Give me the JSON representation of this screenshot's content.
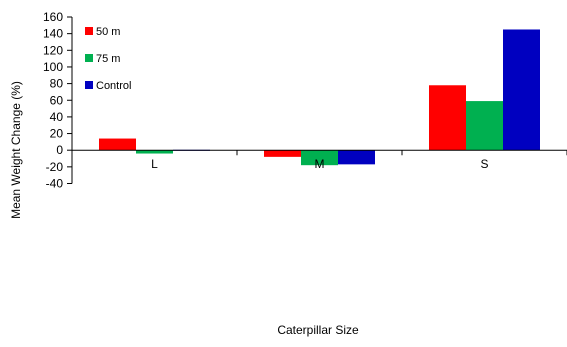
{
  "chart_data": {
    "type": "bar",
    "title": "",
    "xlabel": "Caterpillar Size",
    "ylabel": "Mean Weight Change (%)",
    "categories": [
      "L",
      "M",
      "S"
    ],
    "ylim": [
      -40,
      160
    ],
    "yticks": [
      160,
      140,
      120,
      100,
      80,
      60,
      40,
      20,
      0,
      -20,
      -40
    ],
    "grid": false,
    "legend_position": "top-left",
    "series": [
      {
        "name": "50 m",
        "color": "#ff0000",
        "values": [
          14,
          -8,
          78
        ]
      },
      {
        "name": "75 m",
        "color": "#00b050",
        "values": [
          -4,
          -18,
          59
        ]
      },
      {
        "name": "Control",
        "color": "#0000c0",
        "values": [
          0.5,
          -17,
          145
        ]
      }
    ]
  }
}
